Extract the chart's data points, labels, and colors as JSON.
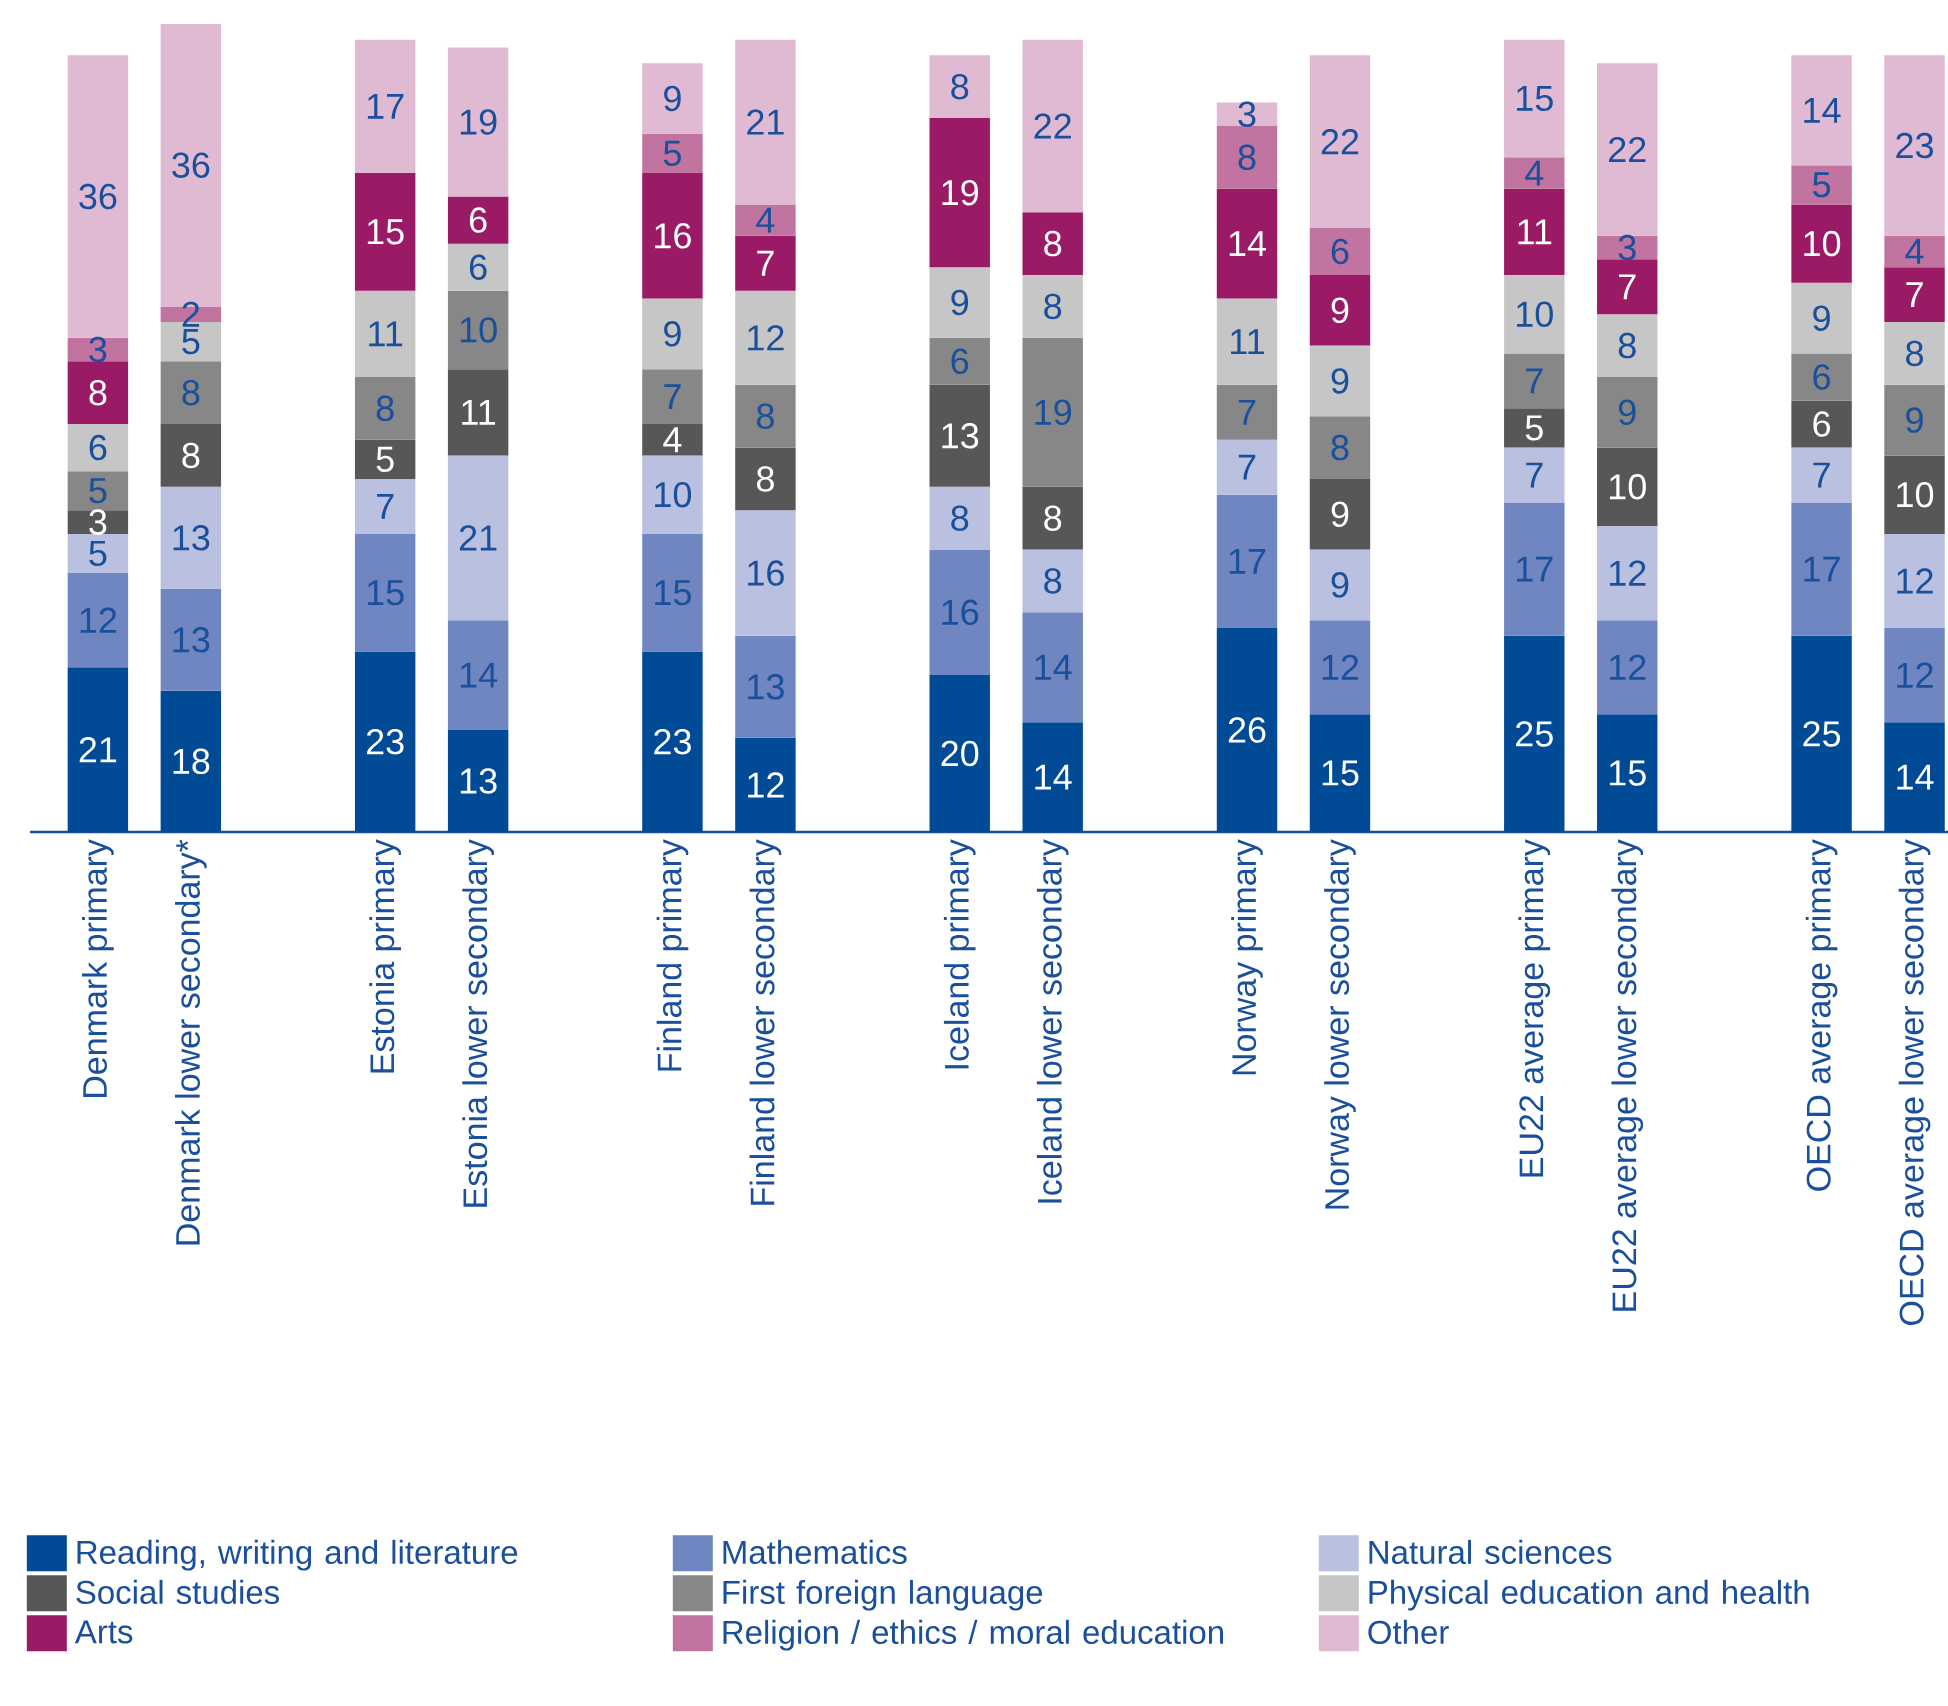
{
  "chart_data": {
    "type": "bar",
    "stacked": true,
    "data_labels": true,
    "legend": "bottom",
    "categories": [
      "Denmark primary",
      "Denmark lower secondary*",
      "Estonia primary",
      "Estonia lower secondary",
      "Finland primary",
      "Finland lower secondary",
      "Iceland primary",
      "Iceland lower secondary",
      "Norway primary",
      "Norway lower secondary",
      "EU22 average primary",
      "EU22 average lower secondary",
      "OECD average primary",
      "OECD average lower secondary"
    ],
    "ylim": [
      0,
      103
    ],
    "series": [
      {
        "name": "Reading, writing and literature",
        "color": "#004a96",
        "values": [
          21,
          18,
          23,
          13,
          23,
          12,
          20,
          14,
          26,
          15,
          25,
          15,
          25,
          14
        ]
      },
      {
        "name": "Mathematics",
        "color": "#6f86c0",
        "values": [
          12,
          13,
          15,
          14,
          15,
          13,
          16,
          14,
          17,
          12,
          17,
          12,
          17,
          12
        ]
      },
      {
        "name": "Natural sciences",
        "color": "#b9c0e0",
        "values": [
          5,
          13,
          7,
          21,
          10,
          16,
          8,
          8,
          7,
          9,
          7,
          12,
          7,
          12
        ]
      },
      {
        "name": "Social studies",
        "color": "#575757",
        "values": [
          3,
          8,
          5,
          11,
          4,
          8,
          13,
          8,
          null,
          9,
          5,
          10,
          6,
          10
        ]
      },
      {
        "name": "First foreign language",
        "color": "#878787",
        "values": [
          5,
          8,
          8,
          10,
          7,
          8,
          6,
          19,
          7,
          8,
          7,
          9,
          6,
          9
        ]
      },
      {
        "name": "Physical education and health",
        "color": "#c6c6c6",
        "values": [
          6,
          5,
          11,
          6,
          9,
          12,
          9,
          8,
          11,
          9,
          10,
          8,
          9,
          8
        ]
      },
      {
        "name": "Arts",
        "color": "#9b1a66",
        "values": [
          8,
          null,
          15,
          6,
          16,
          7,
          19,
          8,
          14,
          9,
          11,
          7,
          10,
          7
        ]
      },
      {
        "name": "Religion / ethics / moral education",
        "color": "#c0749f",
        "values": [
          3,
          2,
          null,
          null,
          5,
          4,
          null,
          null,
          8,
          6,
          4,
          3,
          5,
          4
        ]
      },
      {
        "name": "Other",
        "color": "#dfbad2",
        "values": [
          36,
          36,
          17,
          19,
          9,
          21,
          8,
          22,
          3,
          22,
          15,
          22,
          14,
          23
        ]
      }
    ]
  }
}
